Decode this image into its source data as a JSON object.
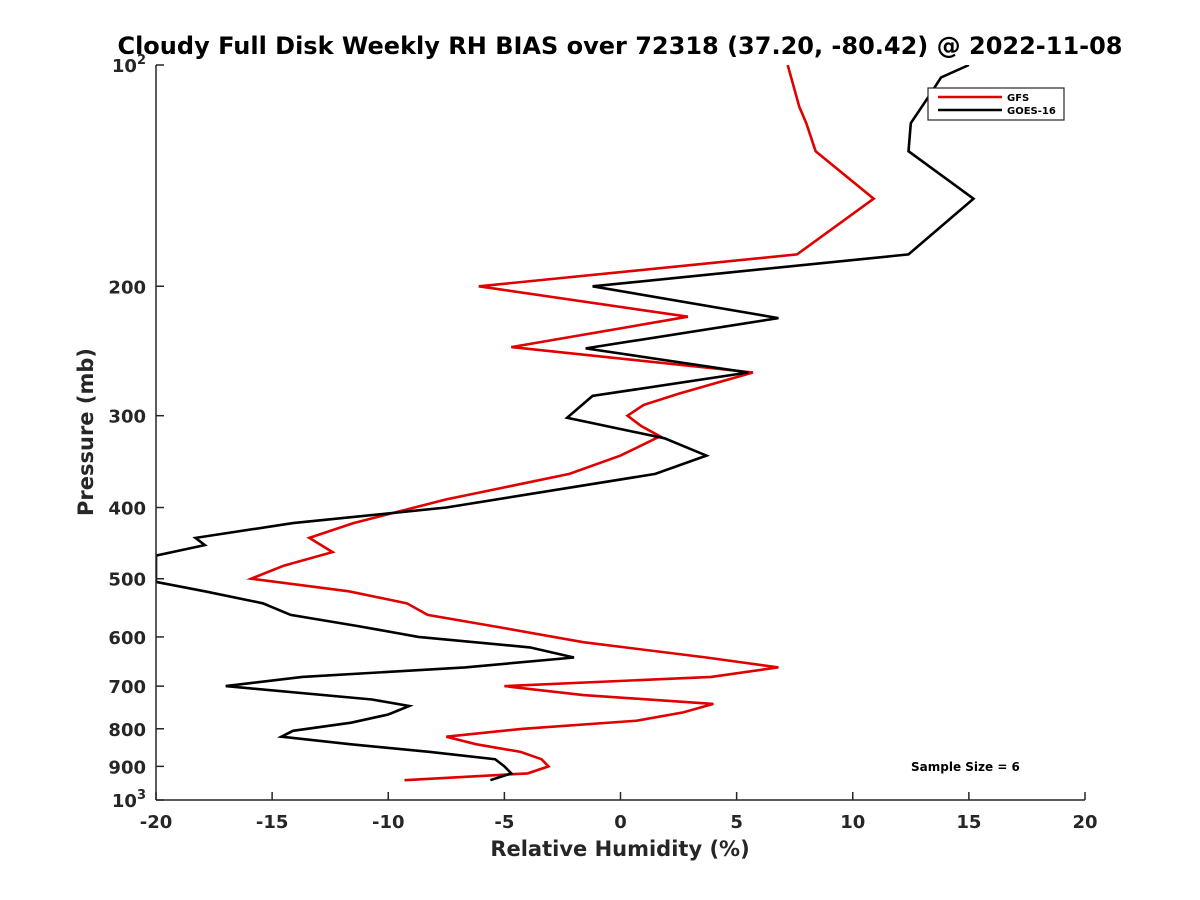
{
  "chart_data": {
    "type": "line",
    "title": "Cloudy Full Disk Weekly RH BIAS over 72318 (37.20, -80.42) @ 2022-11-08",
    "xlabel": "Relative Humidity (%)",
    "ylabel": "Pressure (mb)",
    "xlim": [
      -20,
      20
    ],
    "ylim": [
      100,
      1000
    ],
    "yscale": "log",
    "y_reversed": true,
    "grid": false,
    "x_ticks": [
      -20,
      -15,
      -10,
      -5,
      0,
      5,
      10,
      15,
      20
    ],
    "x_tick_labels": [
      "-20",
      "-15",
      "-10",
      "-5",
      "0",
      "5",
      "10",
      "15",
      "20"
    ],
    "y_ticks": [
      {
        "value": 100,
        "label": "10",
        "exp": "2"
      },
      {
        "value": 200,
        "label": "200",
        "exp": ""
      },
      {
        "value": 300,
        "label": "300",
        "exp": ""
      },
      {
        "value": 400,
        "label": "400",
        "exp": ""
      },
      {
        "value": 500,
        "label": "500",
        "exp": ""
      },
      {
        "value": 600,
        "label": "600",
        "exp": ""
      },
      {
        "value": 700,
        "label": "700",
        "exp": ""
      },
      {
        "value": 800,
        "label": "800",
        "exp": ""
      },
      {
        "value": 900,
        "label": "900",
        "exp": ""
      },
      {
        "value": 1000,
        "label": "10",
        "exp": "3"
      }
    ],
    "legend_position": "top-right",
    "annotation": "Sample Size = 6",
    "series": [
      {
        "name": "GFS",
        "color": "#e00000",
        "x": [
          7.2,
          7.7,
          8.0,
          8.4,
          10.9,
          7.6,
          -6.1,
          2.9,
          -4.7,
          5.7,
          2.5,
          1.0,
          0.3,
          0.9,
          1.7,
          0.0,
          -2.2,
          -7.5,
          -11.5,
          -13.4,
          -12.4,
          -14.5,
          -15.9,
          -11.7,
          -9.2,
          -8.3,
          -5.5,
          -1.6,
          3.7,
          6.8,
          3.9,
          -5.0,
          -1.6,
          4.0,
          2.7,
          0.7,
          -4.2,
          -7.5,
          -6.2,
          -4.3,
          -3.4,
          -3.1,
          -4.0,
          -9.3
        ],
        "y": [
          100,
          114,
          120,
          131,
          152,
          181,
          200,
          220,
          242,
          262,
          280,
          290,
          300,
          310,
          320,
          340,
          360,
          390,
          420,
          440,
          460,
          480,
          500,
          520,
          540,
          560,
          580,
          610,
          640,
          660,
          680,
          700,
          720,
          740,
          760,
          780,
          800,
          820,
          840,
          860,
          880,
          900,
          920,
          940
        ]
      },
      {
        "name": "GOES-16",
        "color": "#000000",
        "x": [
          15.0,
          13.8,
          13.3,
          12.5,
          12.4,
          15.2,
          12.4,
          -1.2,
          6.8,
          -1.5,
          5.5,
          -1.2,
          -2.3,
          1.9,
          3.7,
          1.5,
          -7.5,
          -14.1,
          -18.3,
          -17.9,
          -20.0,
          -20.0,
          -17.9,
          -15.4,
          -14.2,
          -11.3,
          -8.7,
          -3.9,
          -2.0,
          -6.7,
          -13.7,
          -17.0,
          -10.7,
          -9.1,
          -10.0,
          -11.6,
          -14.1,
          -14.6,
          -11.6,
          -8.2,
          -5.4,
          -5.0,
          -4.7,
          -5.6
        ],
        "y": [
          100,
          104,
          110,
          120,
          131,
          152,
          181,
          200,
          221,
          243,
          262,
          282,
          302,
          322,
          340,
          360,
          400,
          420,
          440,
          450,
          465,
          505,
          520,
          540,
          560,
          580,
          600,
          620,
          640,
          660,
          680,
          700,
          730,
          745,
          765,
          785,
          805,
          820,
          840,
          860,
          880,
          900,
          920,
          940
        ]
      }
    ]
  }
}
